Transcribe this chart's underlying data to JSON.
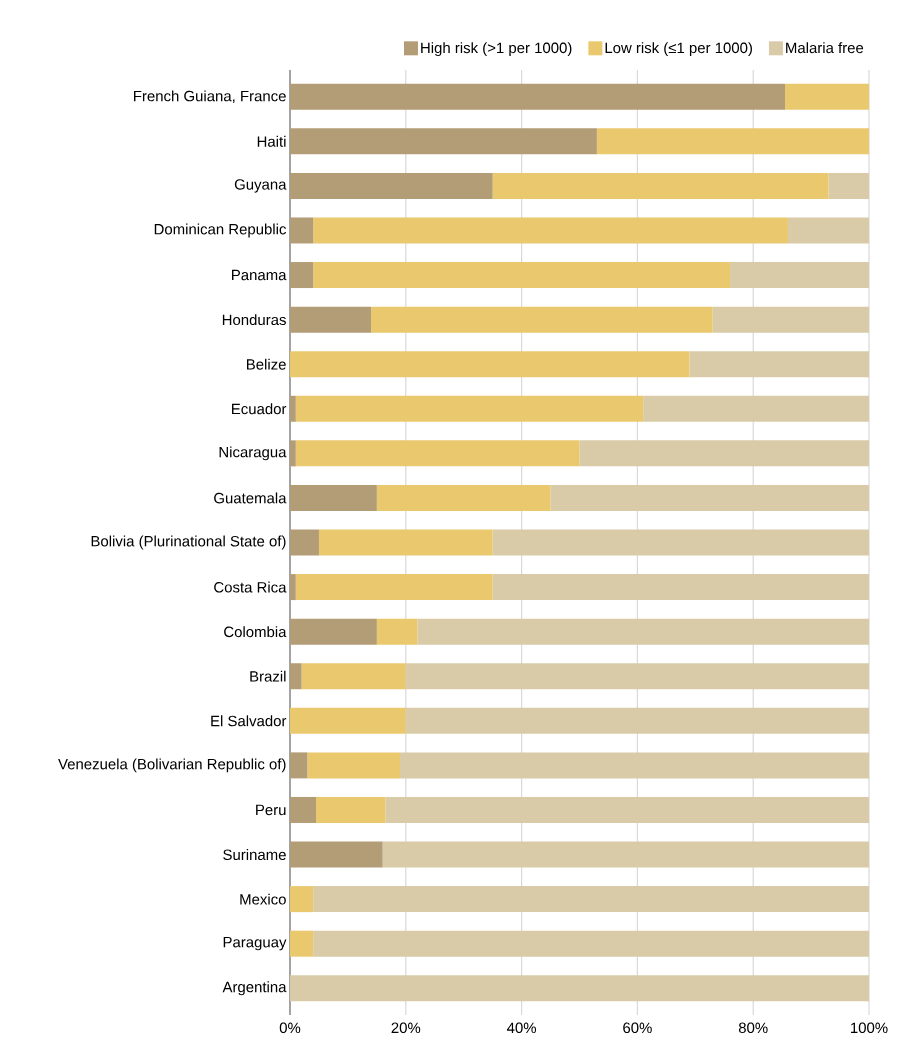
{
  "chart_data": {
    "type": "bar",
    "orientation": "horizontal",
    "stacked": true,
    "categories": [
      "French Guiana, France",
      "Haiti",
      "Guyana",
      "Dominican Republic",
      "Panama",
      "Honduras",
      "Belize",
      "Ecuador",
      "Nicaragua",
      "Guatemala",
      "Bolivia (Plurinational State of)",
      "Costa Rica",
      "Colombia",
      "Brazil",
      "El Salvador",
      "Venezuela (Bolivarian Republic of)",
      "Peru",
      "Suriname",
      "Mexico",
      "Paraguay",
      "Argentina"
    ],
    "series": [
      {
        "name": "High risk (>1 per 1000)",
        "color": "#b39d77",
        "values": [
          85.5,
          53,
          35,
          4,
          4,
          14,
          0,
          1,
          1,
          15,
          5,
          1,
          15,
          2,
          0,
          3,
          4.5,
          16,
          0,
          0,
          0
        ]
      },
      {
        "name": "Low risk (≤1 per 1000)",
        "color": "#eac86e",
        "values": [
          14.5,
          47,
          58,
          82,
          72,
          59,
          69,
          60,
          49,
          30,
          30,
          34,
          7,
          18,
          20,
          16,
          12,
          0,
          4,
          4,
          0
        ]
      },
      {
        "name": "Malaria free",
        "color": "#d9cba8",
        "values": [
          0,
          0,
          7,
          14,
          24,
          27,
          31,
          39,
          50,
          55,
          65,
          65,
          78,
          80,
          80,
          81,
          83.5,
          84,
          96,
          96,
          100
        ]
      }
    ],
    "xlim": [
      0,
      100
    ],
    "xticks": [
      {
        "value": 0,
        "label": "0%"
      },
      {
        "value": 20,
        "label": "20%"
      },
      {
        "value": 40,
        "label": "40%"
      },
      {
        "value": 60,
        "label": "60%"
      },
      {
        "value": 80,
        "label": "80%"
      },
      {
        "value": 100,
        "label": "100%"
      }
    ],
    "grid": "x",
    "legend": "top right"
  }
}
